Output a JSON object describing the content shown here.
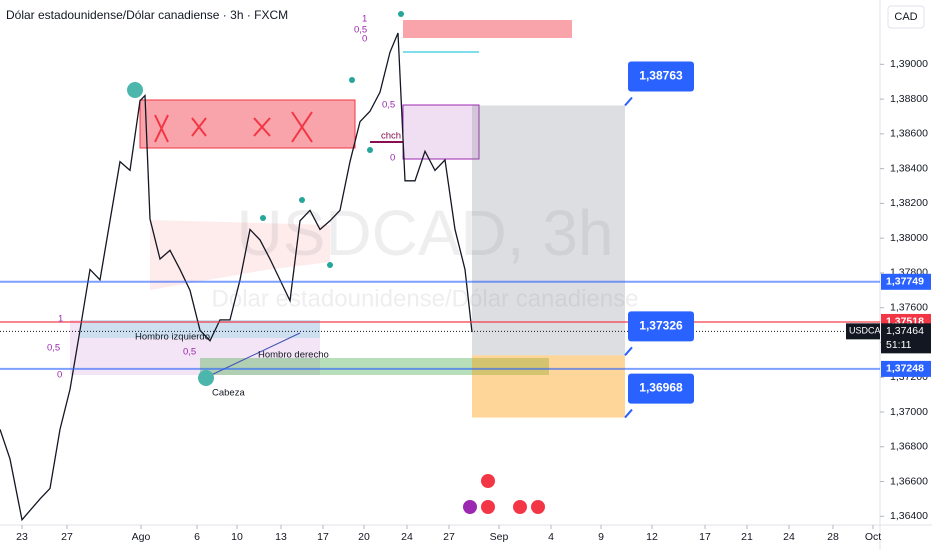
{
  "chart_data": {
    "type": "line",
    "title": "Dólar estadounidense/Dólar canadiense · 3h · FXCM",
    "currency": "CAD",
    "symbol": "USDCAD",
    "watermark": "USDCAD, 3h",
    "watermark_subtitle": "Dólar estadounidense/Dólar canadiense",
    "x": [
      0,
      1,
      2.2,
      4,
      5,
      6,
      7,
      8,
      9,
      10,
      11,
      12,
      13,
      14,
      14.5,
      15,
      16,
      17,
      18,
      19,
      20,
      21,
      22,
      23,
      24,
      25,
      26,
      27,
      28,
      29,
      30,
      31,
      32,
      33,
      34,
      35,
      36,
      37,
      38,
      39,
      39.8,
      40.5,
      41.5,
      42.5,
      43.5,
      44.5,
      45.5,
      46.5,
      47.2
    ],
    "series": [
      {
        "color": "#131722",
        "values": [
          1.369,
          1.3673,
          1.3638,
          1.365,
          1.3656,
          1.369,
          1.3713,
          1.3747,
          1.3782,
          1.3776,
          1.381,
          1.3844,
          1.3839,
          1.3879,
          1.3882,
          1.3811,
          1.3788,
          1.3793,
          1.3782,
          1.377,
          1.3747,
          1.3741,
          1.3753,
          1.3753,
          1.3776,
          1.3805,
          1.3799,
          1.3788,
          1.3776,
          1.3764,
          1.381,
          1.3816,
          1.3805,
          1.381,
          1.3816,
          1.3844,
          1.3867,
          1.3873,
          1.3884,
          1.3907,
          1.3918,
          1.3833,
          1.3833,
          1.385,
          1.3839,
          1.3845,
          1.3805,
          1.3782,
          1.3746
        ]
      }
    ],
    "xlim": [
      0,
      88
    ],
    "xticks": [
      {
        "value": 2.2,
        "label": "23"
      },
      {
        "value": 6.7,
        "label": "27"
      },
      {
        "value": 14.1,
        "label": "Ago"
      },
      {
        "value": 19.7,
        "label": "6"
      },
      {
        "value": 23.7,
        "label": "10"
      },
      {
        "value": 28.1,
        "label": "13"
      },
      {
        "value": 32.3,
        "label": "17"
      },
      {
        "value": 36.4,
        "label": "20"
      },
      {
        "value": 40.7,
        "label": "24"
      },
      {
        "value": 44.9,
        "label": "27"
      },
      {
        "value": 49.9,
        "label": "Sep"
      },
      {
        "value": 55.1,
        "label": "4"
      },
      {
        "value": 60.1,
        "label": "9"
      },
      {
        "value": 65.2,
        "label": "12"
      },
      {
        "value": 70.5,
        "label": "17"
      },
      {
        "value": 74.7,
        "label": "21"
      },
      {
        "value": 78.9,
        "label": "24"
      },
      {
        "value": 83.3,
        "label": "28"
      },
      {
        "value": 87.3,
        "label": "Oct"
      }
    ],
    "ylim": [
      1.3635,
      1.3937
    ],
    "yticks": [
      {
        "value": 1.364,
        "label": "1,36400"
      },
      {
        "value": 1.366,
        "label": "1,36600"
      },
      {
        "value": 1.368,
        "label": "1,36800"
      },
      {
        "value": 1.37,
        "label": "1,37000"
      },
      {
        "value": 1.372,
        "label": "1,37200"
      },
      {
        "value": 1.374,
        "label": "1,37400"
      },
      {
        "value": 1.376,
        "label": "1,37600"
      },
      {
        "value": 1.378,
        "label": "1,37800"
      },
      {
        "value": 1.38,
        "label": "1,38000"
      },
      {
        "value": 1.382,
        "label": "1,38200"
      },
      {
        "value": 1.384,
        "label": "1,38400"
      },
      {
        "value": 1.386,
        "label": "1,38600"
      },
      {
        "value": 1.388,
        "label": "1,38800"
      },
      {
        "value": 1.39,
        "label": "1,39000"
      }
    ],
    "price_lines": [
      {
        "value": 1.37749,
        "label": "1,37749",
        "color": "#2962ff"
      },
      {
        "value": 1.37518,
        "label": "1,37518",
        "color": "#f23645"
      },
      {
        "value": 1.37248,
        "label": "1,37248",
        "color": "#2962ff"
      }
    ],
    "current_price": {
      "value": 1.37464,
      "label": "1,37464",
      "countdown": "51:11"
    },
    "targets": [
      {
        "value": 1.38763,
        "label": "1,38763"
      },
      {
        "value": 1.37326,
        "label": "1,37326"
      },
      {
        "value": 1.36968,
        "label": "1,36968"
      }
    ],
    "annotations": [
      "Hombro izquierdo",
      "Hombro derecho",
      "Cabeza",
      "chch",
      "1",
      "0,5",
      "0",
      "0,5",
      "1",
      "0,5",
      "0",
      "0,5",
      "0"
    ]
  }
}
